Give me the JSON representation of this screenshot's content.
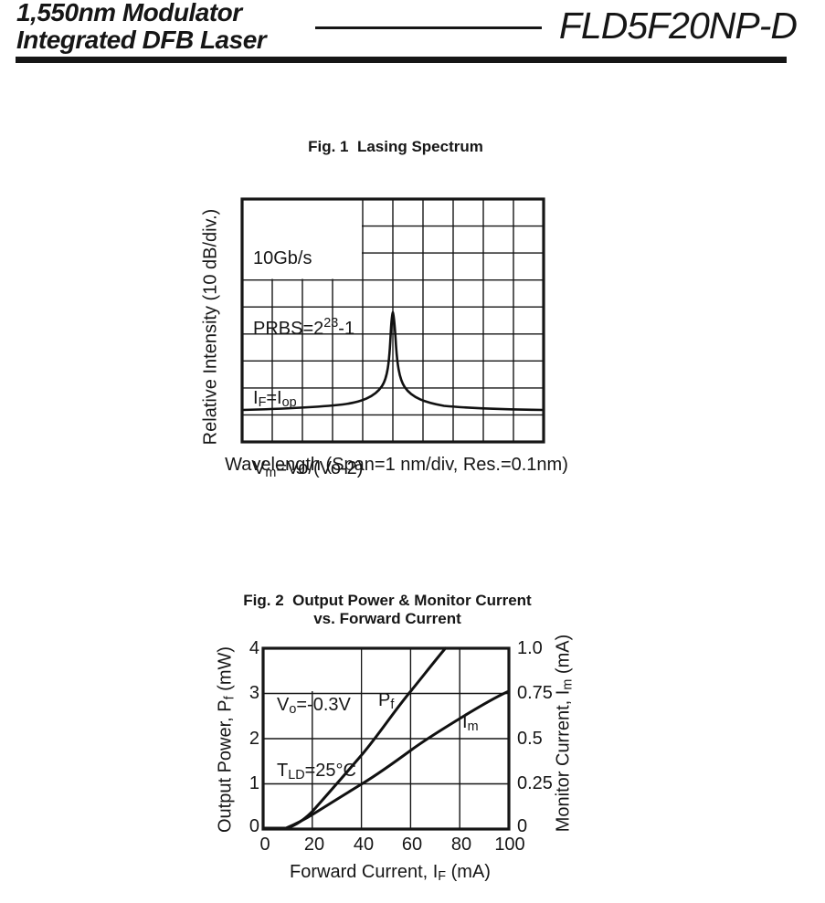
{
  "page": {
    "background": "#ffffff",
    "ink": "#161616"
  },
  "header": {
    "title_line1": "1,550nm Modulator",
    "title_line2": "Integrated DFB Laser",
    "product": "FLD5F20NP-D"
  },
  "fig1": {
    "title": "Fig. 1  Lasing Spectrum",
    "ylabel": "Relative Intensity (10 dB/div.)",
    "xlabel": "Wavelength (Span=1 nm/div, Res.=0.1nm)",
    "annotation_lines": [
      [
        {
          "t": "10Gb/s"
        }
      ],
      [
        {
          "t": "PRBS=2"
        },
        {
          "t": "23",
          "sup": true
        },
        {
          "t": "-1"
        }
      ],
      [
        {
          "t": "I"
        },
        {
          "t": "F",
          "sub": true
        },
        {
          "t": "=I"
        },
        {
          "t": "op",
          "sub": true
        }
      ],
      [
        {
          "t": "V"
        },
        {
          "t": "m",
          "sub": true
        },
        {
          "t": "=Vo/(Vo-2)"
        }
      ]
    ]
  },
  "fig2": {
    "title_line1": "Fig. 2  Output Power & Monitor Current",
    "title_line2": "vs. Forward Current",
    "annotation_lines": [
      [
        {
          "t": "V"
        },
        {
          "t": "o",
          "sub": true
        },
        {
          "t": "=-0.3V"
        }
      ],
      [
        {
          "t": "T"
        },
        {
          "t": "LD",
          "sub": true
        },
        {
          "t": "=25°C"
        }
      ]
    ],
    "curve_labels": {
      "pf": [
        {
          "t": "P"
        },
        {
          "t": "f",
          "sub": true
        }
      ],
      "im": [
        {
          "t": "I"
        },
        {
          "t": "m",
          "sub": true
        }
      ]
    },
    "ylabel_left_rich": [
      {
        "t": "Output Power, P"
      },
      {
        "t": "f",
        "sub": true
      },
      {
        "t": " (mW)"
      }
    ],
    "ylabel_right_rich": [
      {
        "t": "Monitor Current, I"
      },
      {
        "t": "m",
        "sub": true
      },
      {
        "t": " (mA)"
      }
    ],
    "xlabel_rich": [
      {
        "t": "Forward Current, I"
      },
      {
        "t": "F",
        "sub": true
      },
      {
        "t": " (mA)"
      }
    ],
    "yticks_left": [
      "4",
      "3",
      "2",
      "1",
      "0"
    ],
    "yticks_right": [
      "1.0",
      "0.75",
      "0.5",
      "0.25",
      "0"
    ],
    "xticks": [
      "0",
      "20",
      "40",
      "60",
      "80",
      "100"
    ]
  },
  "chart_data": [
    {
      "type": "line",
      "title": "Fig. 1 Lasing Spectrum",
      "xlabel": "Wavelength (Span=1 nm/div, Res.=0.1nm)",
      "ylabel": "Relative Intensity (10 dB/div.)",
      "x_divisions": 10,
      "y_divisions": 9,
      "x_div_unit": "1 nm/div",
      "y_div_unit": "10 dB/div",
      "grid": true,
      "annotations": [
        "10Gb/s",
        "PRBS=2^23-1",
        "IF=Iop",
        "Vm=Vo/(Vo-2)"
      ],
      "series": [
        {
          "name": "lasing spectrum",
          "x_div": [
            0,
            2,
            3,
            4,
            4.6,
            4.9,
            5.0,
            5.1,
            5.4,
            6,
            7,
            8,
            10
          ],
          "y_div_above_baseline": [
            0.1,
            0.2,
            0.5,
            1.0,
            1.9,
            3.0,
            3.8,
            3.0,
            1.6,
            0.6,
            0.25,
            0.15,
            0.1
          ]
        }
      ],
      "notes": "Single narrow peak centered at mid-span (5th of 10 divisions); flat baseline ~1 division above bottom edge; peak height ~3.8 divisions (~38 dB)"
    },
    {
      "type": "line",
      "title": "Fig. 2 Output Power & Monitor Current vs. Forward Current",
      "xlabel": "Forward Current, IF (mA)",
      "ylabel_left": "Output Power, Pf (mW)",
      "ylabel_right": "Monitor Current, Im (mA)",
      "xlim": [
        0,
        100
      ],
      "ylim_left": [
        0,
        4
      ],
      "ylim_right": [
        0,
        1.0
      ],
      "xticks": [
        0,
        20,
        40,
        60,
        80,
        100
      ],
      "yticks_left": [
        0,
        1,
        2,
        3,
        4
      ],
      "yticks_right": [
        0,
        0.25,
        0.5,
        0.75,
        1.0
      ],
      "grid": true,
      "annotations": [
        "Vo=-0.3V",
        "TLD=25°C"
      ],
      "series": [
        {
          "name": "Pf",
          "axis": "left",
          "units": "mW",
          "x": [
            0,
            10,
            20,
            30,
            40,
            50,
            60,
            70,
            74
          ],
          "y": [
            0,
            0,
            0.4,
            1.0,
            1.65,
            2.35,
            3.05,
            3.7,
            4.0
          ]
        },
        {
          "name": "Im",
          "axis": "right",
          "units": "mA",
          "x": [
            0,
            10,
            20,
            40,
            60,
            80,
            100
          ],
          "y": [
            0,
            0,
            0.07,
            0.25,
            0.44,
            0.61,
            0.76
          ]
        }
      ],
      "notes": "Both curves share threshold ~10 mA; Pf exits top of plot near 74 mA; Im slightly sub-linear at high current"
    }
  ]
}
